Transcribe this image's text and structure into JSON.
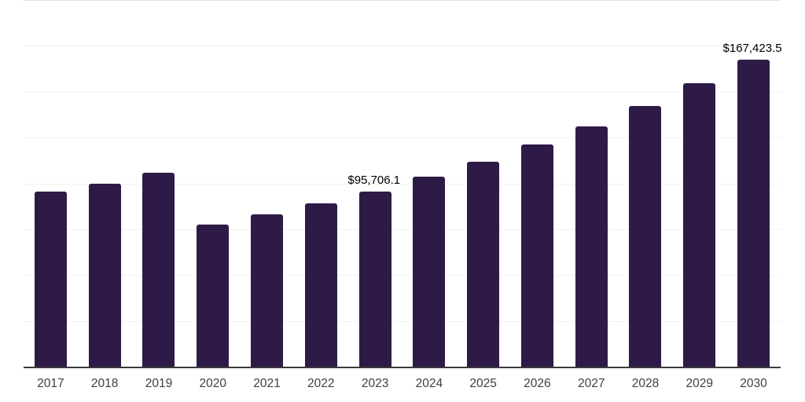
{
  "chart_data": {
    "type": "bar",
    "title": "",
    "xlabel": "",
    "ylabel": "",
    "categories": [
      "2017",
      "2018",
      "2019",
      "2020",
      "2021",
      "2022",
      "2023",
      "2024",
      "2025",
      "2026",
      "2027",
      "2028",
      "2029",
      "2030"
    ],
    "values": [
      95500,
      99600,
      106000,
      77600,
      83200,
      89200,
      95706.1,
      103600,
      111800,
      121100,
      131100,
      142300,
      154500,
      167423.5
    ],
    "data_labels": [
      {
        "category": "2023",
        "text": "$95,706.1"
      },
      {
        "category": "2030",
        "text": "$167,423.5"
      }
    ],
    "ylim": [
      0,
      200000
    ],
    "gridline_step": 25000,
    "grid": "horizontal",
    "legend": "none",
    "y_tick_labels_visible": false,
    "bar_color": "#2e1a47",
    "axis_line_color": "#3b3b3b",
    "gridline_color": "#f1f1f1",
    "top_gridline_color": "#e3e3e3",
    "data_label_color": "#000000",
    "x_tick_label_color": "#3f3f3f"
  }
}
